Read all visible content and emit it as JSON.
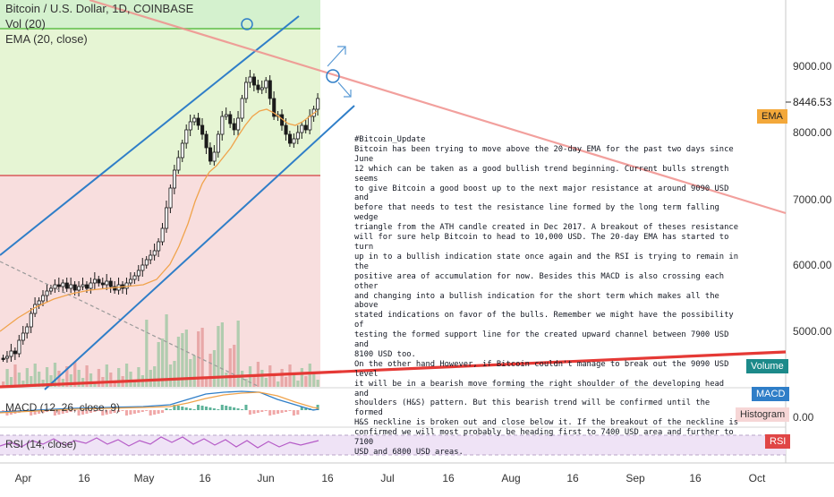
{
  "chart": {
    "title": "Bitcoin / U.S. Dollar, 1D, COINBASE",
    "indicators": [
      "Vol (20)",
      "EMA (20, close)"
    ],
    "macd_label": "MACD (12, 26, close, 9)",
    "rsi_label": "RSI (14, close)",
    "last_price": "8446.53",
    "badges": {
      "ema": "EMA",
      "volume": "Volume",
      "macd": "MACD",
      "histogram": "Histogram",
      "rsi": "RSI"
    },
    "histogram_value": "0.00"
  },
  "chart_data": {
    "type": "candlestick",
    "y_ticks": [
      "9000.00",
      "8000.00",
      "7000.00",
      "6000.00",
      "5000.00"
    ],
    "x_ticks": [
      "Apr",
      "16",
      "May",
      "16",
      "Jun",
      "16",
      "Jul",
      "16",
      "Aug",
      "16",
      "Sep",
      "16",
      "Oct"
    ],
    "support_zone_level": 7300,
    "resistance_zone_level": 9600
  },
  "note": {
    "text": "#Bitcoin_Update\nBitcoin has been trying to move above the 20-day EMA for the past two days since June\n12 which can be taken as a good bullish trend beginning. Current bulls strength seems\nto give Bitcoin a good boost up to the next major resistance at around 9090 USD and\nbefore that needs to test the resistance line formed by the long term falling wedge\ntriangle from the ATH candle created in Dec 2017. A breakout of theses resistance\nwill for sure help Bitcoin to head to 10,000 USD. The 20-day EMA has started to turn\nup in to a bullish indication state once again and the RSI is trying to remain in the\npositive area of accumulation for now. Besides this MACD is also crossing each other\nand changing into a bullish indication for the short term which makes all the above\nstated indications on favor of the bulls. Remember we might have the possibility of\ntesting the formed support line for the created upward channel between 7900 USD and\n8100 USD too.\nOn the other hand However, if Bitcoin couldn't manage to break out the 9090 USD level\nit will be in a bearish move forming the right shoulder of the developing head and\nshoulders (H&S) pattern. But this bearish trend will be confirmed until the formed\nH&S neckline is broken out and close below it. If the breakout of the neckline is\nconfirmed we will most probably be heading first to 7400 USD area and further to 7100\nUSD and 6800 USD areas."
  }
}
